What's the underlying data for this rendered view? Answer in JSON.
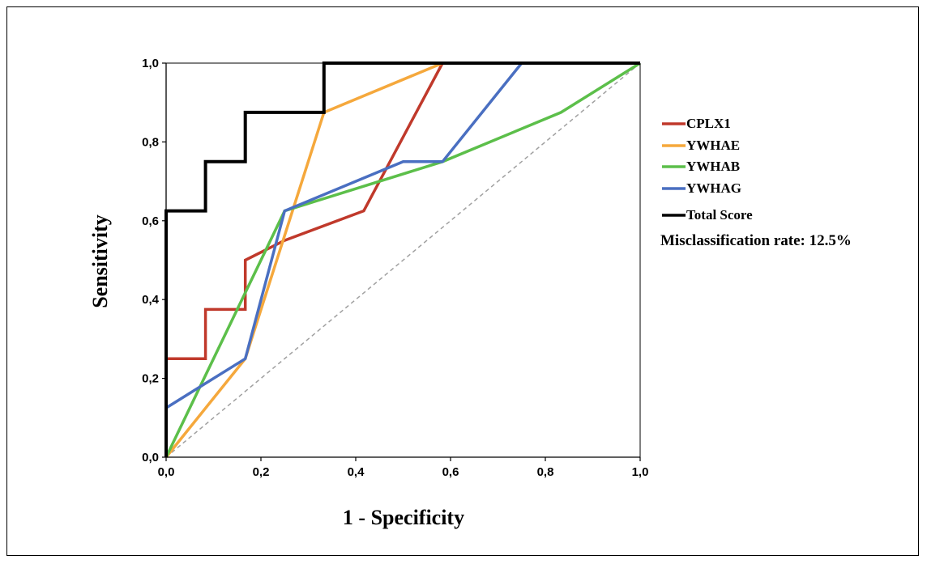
{
  "chart_data": {
    "type": "line",
    "title": "",
    "xlabel": "1 - Specificity",
    "ylabel": "Sensitivity",
    "xlim": [
      0,
      1
    ],
    "ylim": [
      0,
      1
    ],
    "x_ticks": [
      "0,0",
      "0,2",
      "0,4",
      "0,6",
      "0,8",
      "1,0"
    ],
    "y_ticks": [
      "0,0",
      "0,2",
      "0,4",
      "0,6",
      "0,8",
      "1,0"
    ],
    "legend_position": "right",
    "annotation": "Misclassification rate: 12.5%",
    "reference_line": {
      "style": "dashed",
      "color": "#a0a0a0",
      "points": [
        [
          0,
          0
        ],
        [
          1,
          1
        ]
      ]
    },
    "series": [
      {
        "name": "CPLX1",
        "color": "#c0392b",
        "points": [
          [
            0,
            0
          ],
          [
            0,
            0.25
          ],
          [
            0.083,
            0.25
          ],
          [
            0.083,
            0.375
          ],
          [
            0.167,
            0.375
          ],
          [
            0.167,
            0.5
          ],
          [
            0.25,
            0.55
          ],
          [
            0.417,
            0.625
          ],
          [
            0.583,
            1.0
          ],
          [
            1.0,
            1.0
          ]
        ]
      },
      {
        "name": "YWHAE",
        "color": "#f5a83c",
        "points": [
          [
            0,
            0
          ],
          [
            0.167,
            0.25
          ],
          [
            0.333,
            0.875
          ],
          [
            0.583,
            1.0
          ],
          [
            1.0,
            1.0
          ]
        ]
      },
      {
        "name": "YWHAB",
        "color": "#5cbf4a",
        "points": [
          [
            0,
            0
          ],
          [
            0.25,
            0.625
          ],
          [
            0.583,
            0.75
          ],
          [
            0.833,
            0.875
          ],
          [
            1.0,
            1.0
          ]
        ]
      },
      {
        "name": "YWHAG",
        "color": "#4a6fc1",
        "points": [
          [
            0,
            0
          ],
          [
            0,
            0.125
          ],
          [
            0.167,
            0.25
          ],
          [
            0.25,
            0.625
          ],
          [
            0.5,
            0.75
          ],
          [
            0.583,
            0.75
          ],
          [
            0.75,
            1.0
          ],
          [
            1.0,
            1.0
          ]
        ]
      },
      {
        "name": "Total Score",
        "color": "#000000",
        "points": [
          [
            0,
            0
          ],
          [
            0,
            0.625
          ],
          [
            0.083,
            0.625
          ],
          [
            0.083,
            0.75
          ],
          [
            0.167,
            0.75
          ],
          [
            0.167,
            0.875
          ],
          [
            0.333,
            0.875
          ],
          [
            0.333,
            1.0
          ],
          [
            1.0,
            1.0
          ]
        ]
      }
    ]
  }
}
